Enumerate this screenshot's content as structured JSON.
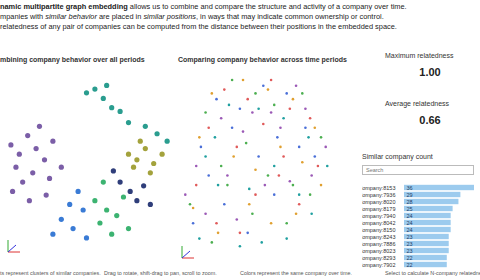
{
  "header": {
    "lines": [
      [
        {
          "text": "namic multipartite graph embedding",
          "style": "bold"
        },
        {
          "text": " allows us to combine and compare the structure and activity of a company over time."
        }
      ],
      [
        {
          "text": "mpanies with "
        },
        {
          "text": "similar behavior",
          "style": "italic"
        },
        {
          "text": " are placed in "
        },
        {
          "text": "similar positions",
          "style": "italic"
        },
        {
          "text": ", in ways that may indicate common ownership or control."
        }
      ],
      [
        {
          "text": "relatedness of any pair of companies can be computed from the distance between their positions in the embedded space."
        }
      ]
    ]
  },
  "kpis": [
    {
      "label": "Maximum relatedness",
      "value": "1.00"
    },
    {
      "label": "Average relatedness",
      "value": "0.66"
    }
  ],
  "captions": [
    "ts represent clusters of similar companies.",
    "Drag to rotate, shift-drag to pan, scroll to zoom.",
    "Colors represent the same company over time.",
    "Select to calculate N-company relatedness."
  ],
  "chart_data": [
    {
      "type": "scatter",
      "title": "mbining company behavior over all periods",
      "xlim": [
        0,
        100
      ],
      "ylim": [
        0,
        100
      ],
      "tick_labels": false,
      "marker": "circle",
      "series": [
        {
          "color": "#7b5ea7",
          "x": [
            5,
            10,
            8,
            15,
            20,
            12,
            18,
            25,
            22,
            30,
            28,
            35,
            6,
            16,
            26
          ],
          "y": [
            60,
            55,
            48,
            65,
            58,
            40,
            45,
            52,
            70,
            62,
            42,
            48,
            35,
            30,
            33
          ]
        },
        {
          "color": "#a3a23c",
          "x": [
            75,
            80,
            85,
            90,
            78,
            88,
            95,
            82
          ],
          "y": [
            55,
            52,
            58,
            50,
            48,
            45,
            55,
            62
          ]
        },
        {
          "color": "#2a9d8f",
          "x": [
            55,
            60,
            65,
            70,
            75,
            85,
            92,
            98,
            50,
            62
          ],
          "y": [
            90,
            85,
            80,
            78,
            72,
            70,
            66,
            62,
            88,
            92
          ]
        },
        {
          "color": "#3cb371",
          "x": [
            55,
            62,
            58,
            68,
            72,
            65,
            60,
            75
          ],
          "y": [
            30,
            25,
            18,
            22,
            32,
            12,
            40,
            15
          ]
        },
        {
          "color": "#3a7bd5",
          "x": [
            35,
            42,
            48,
            40,
            50,
            30,
            45
          ],
          "y": [
            20,
            15,
            25,
            28,
            10,
            12,
            35
          ]
        },
        {
          "color": "#2f3e7a",
          "x": [
            70,
            76,
            80,
            84,
            66,
            88
          ],
          "y": [
            40,
            35,
            30,
            38,
            46,
            28
          ]
        }
      ]
    },
    {
      "type": "scatter",
      "title": "Comparing company behavior across time periods",
      "xlim": [
        0,
        100
      ],
      "ylim": [
        0,
        100
      ],
      "tick_labels": false,
      "marker": "circle",
      "series": [
        {
          "color": "#e05a5a",
          "x": [
            30,
            45,
            60,
            72,
            85,
            20,
            38,
            55,
            68,
            90,
            12,
            25,
            50,
            78,
            40,
            65
          ],
          "y": [
            90,
            85,
            95,
            80,
            75,
            70,
            60,
            72,
            55,
            50,
            40,
            20,
            35,
            30,
            15,
            45
          ]
        },
        {
          "color": "#4caf50",
          "x": [
            35,
            50,
            62,
            80,
            92,
            18,
            28,
            44,
            58,
            74,
            8,
            22,
            48,
            70,
            85,
            32
          ],
          "y": [
            95,
            88,
            82,
            88,
            65,
            78,
            50,
            62,
            45,
            40,
            30,
            10,
            25,
            20,
            35,
            40
          ]
        },
        {
          "color": "#4a6fd8",
          "x": [
            40,
            55,
            70,
            82,
            25,
            15,
            35,
            52,
            64,
            78,
            10,
            30,
            45,
            62,
            88,
            20
          ],
          "y": [
            80,
            92,
            88,
            70,
            85,
            60,
            70,
            55,
            65,
            60,
            20,
            30,
            15,
            35,
            55,
            45
          ]
        },
        {
          "color": "#9b59b6",
          "x": [
            28,
            48,
            66,
            76,
            95,
            12,
            32,
            42,
            60,
            86,
            18,
            38,
            56,
            72,
            82,
            5
          ],
          "y": [
            75,
            78,
            70,
            92,
            60,
            50,
            45,
            68,
            78,
            45,
            25,
            22,
            40,
            42,
            80,
            35
          ]
        },
        {
          "color": "#e0a030",
          "x": [
            22,
            42,
            58,
            74,
            88,
            14,
            36,
            50,
            66,
            80,
            26,
            46,
            60,
            76,
            92,
            10
          ],
          "y": [
            88,
            95,
            90,
            85,
            70,
            65,
            55,
            48,
            60,
            52,
            15,
            30,
            20,
            25,
            40,
            28
          ]
        },
        {
          "color": "#20a0a0",
          "x": [
            33,
            52,
            68,
            84,
            96,
            18,
            26,
            46,
            62,
            78,
            14,
            40,
            54,
            70,
            86,
            24
          ],
          "y": [
            82,
            80,
            75,
            65,
            50,
            55,
            40,
            38,
            50,
            35,
            12,
            8,
            10,
            12,
            25,
            65
          ]
        }
      ]
    },
    {
      "type": "bar",
      "orientation": "horizontal",
      "title": "Similar company count",
      "search_placeholder": "Search",
      "categories": [
        "Company:8153",
        "Company:7936",
        "Company:8020",
        "Company:8179",
        "Company:7940",
        "Company:8042",
        "Company:8150",
        "Company:8243",
        "Company:7886",
        "Company:8023",
        "Company:8293",
        "Company:7902"
      ],
      "values": [
        36,
        29,
        28,
        25,
        24,
        24,
        24,
        23,
        23,
        23,
        22,
        22
      ],
      "color": "#9ccbee",
      "xlim": [
        0,
        36
      ],
      "data_labels": true,
      "tick_labels": "y"
    }
  ]
}
